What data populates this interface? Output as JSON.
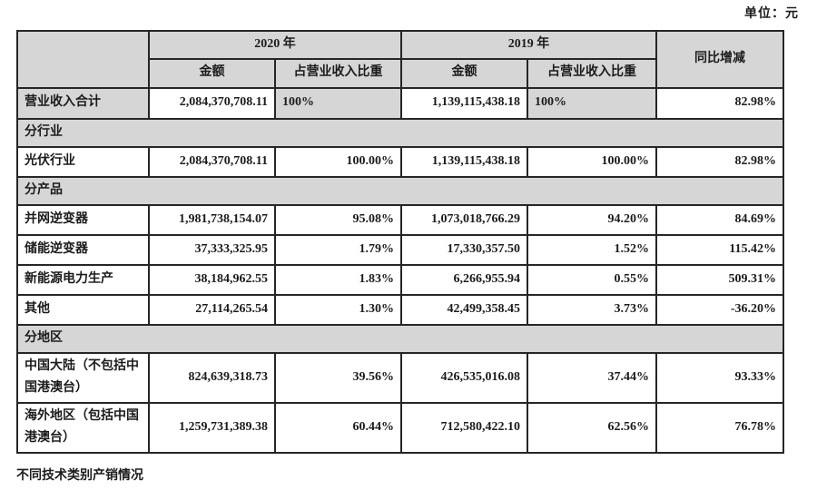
{
  "page": {
    "unit_label": "单位：元",
    "footer_note": "不同技术类别产销情况"
  },
  "colors": {
    "shaded_cell_bg": "#d6d6d6",
    "table_border": "#262626",
    "text": "#1c1c1c",
    "page_bg": "#ffffff"
  },
  "table": {
    "col_headers": {
      "year_2020": "2020 年",
      "year_2019": "2019 年",
      "amount": "金额",
      "ratio": "占营业收入比重",
      "yoy": "同比增减"
    },
    "rows": [
      {
        "type": "total",
        "label": "营业收入合计",
        "amount_2020": "2,084,370,708.11",
        "ratio_2020": "100%",
        "amount_2019": "1,139,115,438.18",
        "ratio_2019": "100%",
        "yoy": "82.98%"
      },
      {
        "type": "section",
        "label": "分行业"
      },
      {
        "type": "data",
        "label": "光伏行业",
        "amount_2020": "2,084,370,708.11",
        "ratio_2020": "100.00%",
        "amount_2019": "1,139,115,438.18",
        "ratio_2019": "100.00%",
        "yoy": "82.98%"
      },
      {
        "type": "section",
        "label": "分产品"
      },
      {
        "type": "data",
        "label": "并网逆变器",
        "amount_2020": "1,981,738,154.07",
        "ratio_2020": "95.08%",
        "amount_2019": "1,073,018,766.29",
        "ratio_2019": "94.20%",
        "yoy": "84.69%"
      },
      {
        "type": "data",
        "label": "储能逆变器",
        "amount_2020": "37,333,325.95",
        "ratio_2020": "1.79%",
        "amount_2019": "17,330,357.50",
        "ratio_2019": "1.52%",
        "yoy": "115.42%"
      },
      {
        "type": "data",
        "label": "新能源电力生产",
        "amount_2020": "38,184,962.55",
        "ratio_2020": "1.83%",
        "amount_2019": "6,266,955.94",
        "ratio_2019": "0.55%",
        "yoy": "509.31%"
      },
      {
        "type": "data",
        "label": "其他",
        "amount_2020": "27,114,265.54",
        "ratio_2020": "1.30%",
        "amount_2019": "42,499,358.45",
        "ratio_2019": "3.73%",
        "yoy": "-36.20%"
      },
      {
        "type": "section",
        "label": "分地区"
      },
      {
        "type": "data",
        "label": "中国大陆（不包括中国港澳台）",
        "amount_2020": "824,639,318.73",
        "ratio_2020": "39.56%",
        "amount_2019": "426,535,016.08",
        "ratio_2019": "37.44%",
        "yoy": "93.33%"
      },
      {
        "type": "data",
        "label": "海外地区（包括中国港澳台）",
        "amount_2020": "1,259,731,389.38",
        "ratio_2020": "60.44%",
        "amount_2019": "712,580,422.10",
        "ratio_2019": "62.56%",
        "yoy": "76.78%"
      }
    ]
  }
}
